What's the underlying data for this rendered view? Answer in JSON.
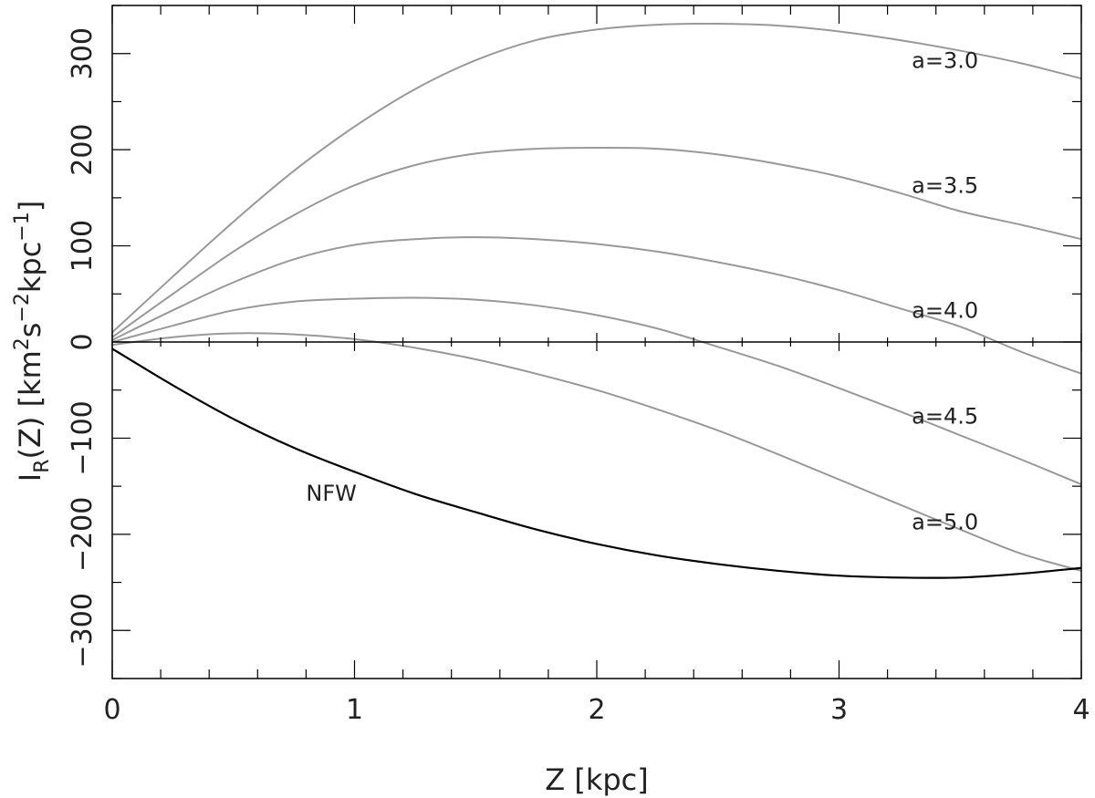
{
  "chart_data": {
    "type": "line",
    "xlabel": "Z [kpc]",
    "ylabel": {
      "main": "I",
      "sub": "R",
      "after_sub": "(Z) [km",
      "sup1": "2",
      "mid1": "s",
      "sup2": "−2",
      "mid2": "kpc",
      "sup3": "−1",
      "end": "]"
    },
    "xlim": [
      0,
      4
    ],
    "ylim": [
      -350,
      350
    ],
    "xticks": [
      0,
      1,
      2,
      3,
      4
    ],
    "xtick_labels": [
      "0",
      "1",
      "2",
      "3",
      "4"
    ],
    "yticks": [
      -300,
      -200,
      -100,
      0,
      100,
      200,
      300
    ],
    "ytick_labels": [
      "−300",
      "−200",
      "−100",
      "0",
      "100",
      "200",
      "300"
    ],
    "x_minor_step": 0.2,
    "zero_line": true,
    "grid": false,
    "series": [
      {
        "name": "a=3.0",
        "color": "#999999",
        "x": [
          0,
          0.25,
          0.5,
          0.75,
          1.0,
          1.25,
          1.5,
          1.75,
          2.0,
          2.25,
          2.5,
          2.75,
          3.0,
          3.25,
          3.5,
          3.75,
          4.0
        ],
        "y": [
          10,
          68,
          125,
          178,
          224,
          263,
          293,
          314,
          325,
          330,
          331,
          329,
          323,
          314,
          303,
          290,
          274
        ]
      },
      {
        "name": "a=3.5",
        "color": "#999999",
        "x": [
          0,
          0.25,
          0.5,
          0.75,
          1.0,
          1.25,
          1.5,
          1.75,
          2.0,
          2.25,
          2.5,
          2.75,
          3.0,
          3.25,
          3.5,
          3.75,
          4.0
        ],
        "y": [
          5,
          50,
          94,
          132,
          163,
          184,
          196,
          201,
          202,
          201,
          195,
          185,
          172,
          155,
          136,
          122,
          107
        ]
      },
      {
        "name": "a=4.0",
        "color": "#999999",
        "x": [
          0,
          0.25,
          0.5,
          0.75,
          1.0,
          1.25,
          1.5,
          1.75,
          2.0,
          2.25,
          2.5,
          2.75,
          3.0,
          3.25,
          3.5,
          3.75,
          4.0
        ],
        "y": [
          2,
          33,
          62,
          86,
          101,
          107,
          109,
          107,
          102,
          94,
          83,
          70,
          54,
          35,
          16,
          -10,
          -33
        ]
      },
      {
        "name": "a=4.5",
        "color": "#999999",
        "x": [
          0,
          0.25,
          0.5,
          0.75,
          1.0,
          1.25,
          1.5,
          1.75,
          2.0,
          2.25,
          2.5,
          2.75,
          3.0,
          3.25,
          3.5,
          3.75,
          4.0
        ],
        "y": [
          0,
          17,
          33,
          42,
          45,
          46,
          44,
          38,
          28,
          14,
          -5,
          -25,
          -48,
          -72,
          -97,
          -122,
          -148
        ]
      },
      {
        "name": "a=5.0",
        "color": "#999999",
        "x": [
          0,
          0.25,
          0.5,
          0.75,
          1.0,
          1.25,
          1.5,
          1.75,
          2.0,
          2.25,
          2.5,
          2.75,
          3.0,
          3.25,
          3.5,
          3.75,
          4.0
        ],
        "y": [
          -3,
          5,
          9,
          8,
          3,
          -6,
          -18,
          -33,
          -50,
          -70,
          -92,
          -117,
          -143,
          -169,
          -195,
          -220,
          -238
        ]
      },
      {
        "name": "NFW",
        "color": "#000000",
        "x": [
          0,
          0.25,
          0.5,
          0.75,
          1.0,
          1.25,
          1.5,
          1.75,
          2.0,
          2.25,
          2.5,
          2.75,
          3.0,
          3.25,
          3.5,
          3.75,
          4.0
        ],
        "y": [
          -7,
          -45,
          -80,
          -110,
          -135,
          -158,
          -177,
          -195,
          -210,
          -222,
          -231,
          -238,
          -243,
          -245,
          -245,
          -241,
          -235
        ]
      }
    ],
    "annotations": [
      {
        "text": "a=3.0",
        "x": 3.3,
        "y": 285
      },
      {
        "text": "a=3.5",
        "x": 3.3,
        "y": 155
      },
      {
        "text": "a=4.0",
        "x": 3.3,
        "y": 25
      },
      {
        "text": "a=4.5",
        "x": 3.3,
        "y": -85
      },
      {
        "text": "a=5.0",
        "x": 3.3,
        "y": -195
      },
      {
        "text": "NFW",
        "x": 0.8,
        "y": -165
      }
    ]
  }
}
